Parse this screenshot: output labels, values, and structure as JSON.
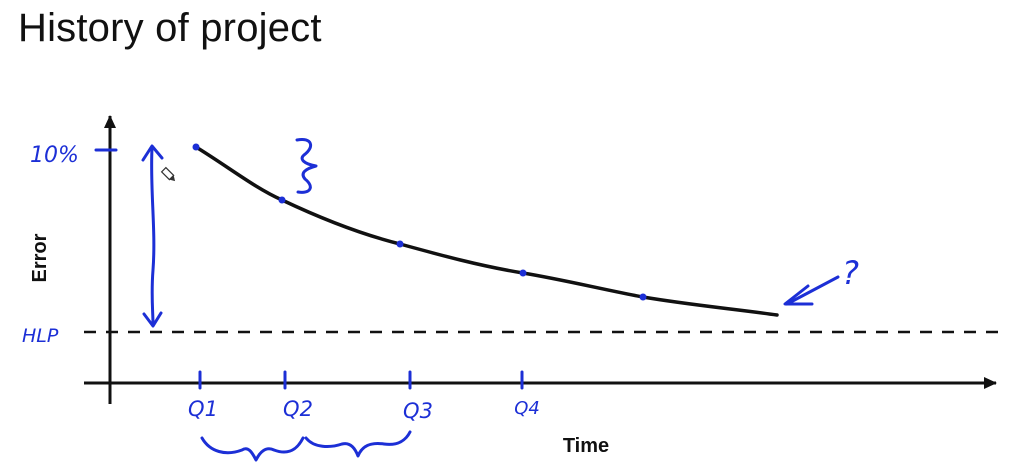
{
  "title": "History of project",
  "axes": {
    "x_label": "Time",
    "y_label": "Error"
  },
  "y_markers": {
    "top_label": "10%",
    "baseline_label": "HLP"
  },
  "x_ticks": [
    "Q1",
    "Q2",
    "Q3",
    "Q4"
  ],
  "annotations": {
    "question_mark": "?"
  },
  "colors": {
    "ink": "#111111",
    "annotation": "#1c2fd6"
  }
}
